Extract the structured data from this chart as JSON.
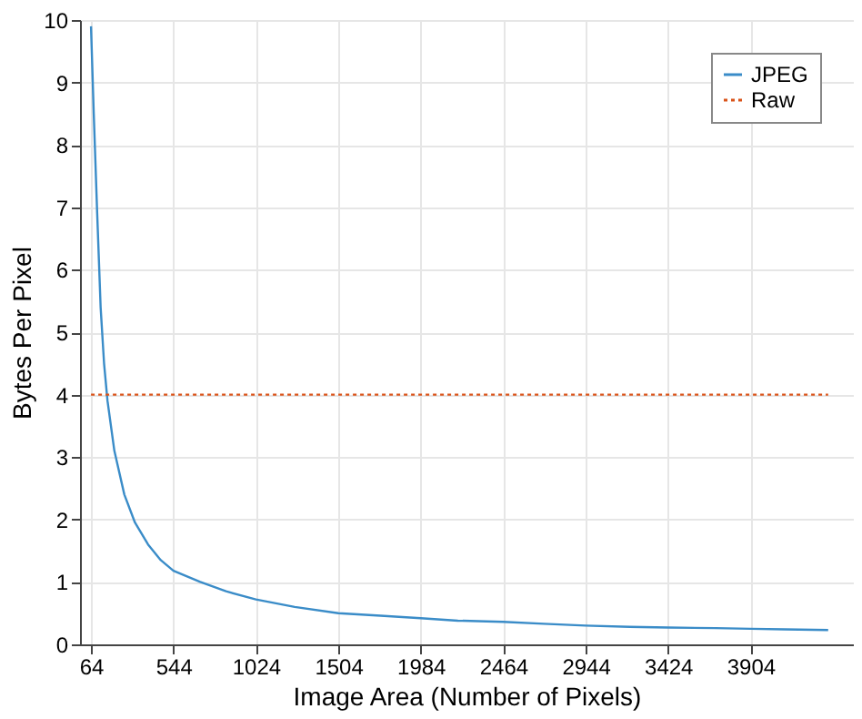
{
  "chart_data": {
    "type": "line",
    "xlabel": "Image Area (Number of Pixels)",
    "ylabel": "Bytes Per Pixel",
    "xlim": [
      0,
      4500
    ],
    "xticks": [
      64,
      544,
      1024,
      1504,
      1984,
      2464,
      2944,
      3424,
      3904
    ],
    "ylim": [
      0,
      10
    ],
    "yticks": [
      0,
      1,
      2,
      3,
      4,
      5,
      6,
      7,
      8,
      9,
      10
    ],
    "grid": true,
    "legend": "top right",
    "marker": "none",
    "series": [
      {
        "name": "JPEG",
        "color": "#3a8cc8",
        "line_style": "solid",
        "x": [
          64,
          80,
          100,
          120,
          140,
          160,
          200,
          258,
          320,
          396,
          470,
          544,
          700,
          850,
          1024,
          1250,
          1504,
          1750,
          1984,
          2200,
          2464,
          2700,
          2944,
          3200,
          3424,
          3700,
          3904,
          4100,
          4356
        ],
        "values": [
          9.9,
          8.5,
          6.9,
          5.4,
          4.5,
          3.9,
          3.1,
          2.4,
          1.95,
          1.6,
          1.35,
          1.18,
          1.0,
          0.85,
          0.72,
          0.6,
          0.5,
          0.46,
          0.42,
          0.38,
          0.36,
          0.33,
          0.3,
          0.28,
          0.27,
          0.26,
          0.25,
          0.24,
          0.23
        ]
      },
      {
        "name": "Raw",
        "color": "#d95319",
        "line_style": "dotted",
        "x": [
          64,
          4356
        ],
        "values": [
          4,
          4
        ]
      }
    ]
  }
}
